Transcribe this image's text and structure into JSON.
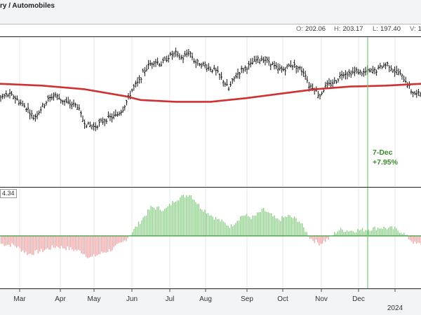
{
  "header": {
    "title": "ry / Automobiles",
    "ohlc": [
      {
        "key": "O:",
        "value": "202.06"
      },
      {
        "key": "H:",
        "value": "203.17"
      },
      {
        "key": "L:",
        "value": "197.40"
      },
      {
        "key": "V:",
        "value": "1"
      }
    ]
  },
  "indicator_label": "4.34",
  "annotation": {
    "date": "7-Dec",
    "change": "+7.95%"
  },
  "colors": {
    "price_bars": "#111111",
    "moving_average": "#d03030",
    "positive_hist": "#8ed08a",
    "negative_hist": "#f2a5a5",
    "zero_line": "#3a9a3a",
    "marker_line": "#7ac77a",
    "grid": "#e4e6e8"
  },
  "chart_data": {
    "type": "ohlc",
    "x_axis": {
      "labels": [
        "Mar",
        "Apr",
        "May",
        "Jun",
        "Jul",
        "Aug",
        "Sep",
        "Oct",
        "Nov",
        "Dec",
        "2024"
      ]
    },
    "price_series": [
      {
        "x": 0,
        "y": 184
      },
      {
        "x": 10,
        "y": 186
      },
      {
        "x": 20,
        "y": 185
      },
      {
        "x": 30,
        "y": 181
      },
      {
        "x": 40,
        "y": 178
      },
      {
        "x": 48,
        "y": 173
      },
      {
        "x": 58,
        "y": 178
      },
      {
        "x": 68,
        "y": 183
      },
      {
        "x": 78,
        "y": 186
      },
      {
        "x": 88,
        "y": 183
      },
      {
        "x": 98,
        "y": 181
      },
      {
        "x": 110,
        "y": 180
      },
      {
        "x": 118,
        "y": 172
      },
      {
        "x": 125,
        "y": 169
      },
      {
        "x": 135,
        "y": 168
      },
      {
        "x": 145,
        "y": 171
      },
      {
        "x": 155,
        "y": 173
      },
      {
        "x": 165,
        "y": 174
      },
      {
        "x": 175,
        "y": 178
      },
      {
        "x": 183,
        "y": 184
      },
      {
        "x": 190,
        "y": 190
      },
      {
        "x": 198,
        "y": 193
      },
      {
        "x": 205,
        "y": 199
      },
      {
        "x": 212,
        "y": 202
      },
      {
        "x": 220,
        "y": 205
      },
      {
        "x": 230,
        "y": 203
      },
      {
        "x": 240,
        "y": 207
      },
      {
        "x": 250,
        "y": 209
      },
      {
        "x": 260,
        "y": 206
      },
      {
        "x": 270,
        "y": 210
      },
      {
        "x": 278,
        "y": 204
      },
      {
        "x": 288,
        "y": 203
      },
      {
        "x": 298,
        "y": 201
      },
      {
        "x": 308,
        "y": 199
      },
      {
        "x": 318,
        "y": 194
      },
      {
        "x": 326,
        "y": 189
      },
      {
        "x": 335,
        "y": 196
      },
      {
        "x": 345,
        "y": 200
      },
      {
        "x": 355,
        "y": 202
      },
      {
        "x": 365,
        "y": 205
      },
      {
        "x": 375,
        "y": 206
      },
      {
        "x": 385,
        "y": 204
      },
      {
        "x": 395,
        "y": 200
      },
      {
        "x": 405,
        "y": 200
      },
      {
        "x": 415,
        "y": 203
      },
      {
        "x": 425,
        "y": 201
      },
      {
        "x": 435,
        "y": 198
      },
      {
        "x": 440,
        "y": 191
      },
      {
        "x": 448,
        "y": 190
      },
      {
        "x": 455,
        "y": 185
      },
      {
        "x": 463,
        "y": 190
      },
      {
        "x": 472,
        "y": 192
      },
      {
        "x": 480,
        "y": 194
      },
      {
        "x": 488,
        "y": 198
      },
      {
        "x": 498,
        "y": 198
      },
      {
        "x": 508,
        "y": 199
      },
      {
        "x": 518,
        "y": 198
      },
      {
        "x": 525,
        "y": 199
      },
      {
        "x": 535,
        "y": 199
      },
      {
        "x": 545,
        "y": 202
      },
      {
        "x": 553,
        "y": 203
      },
      {
        "x": 560,
        "y": 200
      },
      {
        "x": 568,
        "y": 198
      },
      {
        "x": 578,
        "y": 194
      },
      {
        "x": 586,
        "y": 188
      },
      {
        "x": 594,
        "y": 186
      },
      {
        "x": 600,
        "y": 187
      }
    ],
    "moving_average": [
      {
        "x": 0,
        "y": 192
      },
      {
        "x": 60,
        "y": 191
      },
      {
        "x": 120,
        "y": 189
      },
      {
        "x": 180,
        "y": 185
      },
      {
        "x": 200,
        "y": 183
      },
      {
        "x": 250,
        "y": 182
      },
      {
        "x": 300,
        "y": 182
      },
      {
        "x": 350,
        "y": 184
      },
      {
        "x": 400,
        "y": 186.5
      },
      {
        "x": 450,
        "y": 189
      },
      {
        "x": 500,
        "y": 190.5
      },
      {
        "x": 550,
        "y": 191
      },
      {
        "x": 600,
        "y": 192
      }
    ],
    "histogram": [
      {
        "x": 0,
        "y": -1.5
      },
      {
        "x": 20,
        "y": -1.8
      },
      {
        "x": 40,
        "y": -3.5
      },
      {
        "x": 60,
        "y": -2.8
      },
      {
        "x": 80,
        "y": -2.0
      },
      {
        "x": 100,
        "y": -2.5
      },
      {
        "x": 115,
        "y": -3.0
      },
      {
        "x": 128,
        "y": -4.2
      },
      {
        "x": 140,
        "y": -3.5
      },
      {
        "x": 160,
        "y": -2.5
      },
      {
        "x": 175,
        "y": -1.2
      },
      {
        "x": 185,
        "y": 0.3
      },
      {
        "x": 195,
        "y": 2.0
      },
      {
        "x": 215,
        "y": 5.5
      },
      {
        "x": 235,
        "y": 5.0
      },
      {
        "x": 250,
        "y": 7.0
      },
      {
        "x": 270,
        "y": 8.0
      },
      {
        "x": 285,
        "y": 5.5
      },
      {
        "x": 305,
        "y": 3.5
      },
      {
        "x": 328,
        "y": 1.8
      },
      {
        "x": 345,
        "y": 4.0
      },
      {
        "x": 360,
        "y": 3.5
      },
      {
        "x": 375,
        "y": 5.0
      },
      {
        "x": 395,
        "y": 3.0
      },
      {
        "x": 410,
        "y": 3.8
      },
      {
        "x": 425,
        "y": 3.0
      },
      {
        "x": 437,
        "y": 0.5
      },
      {
        "x": 442,
        "y": -0.5
      },
      {
        "x": 455,
        "y": -1.5
      },
      {
        "x": 468,
        "y": -0.5
      },
      {
        "x": 482,
        "y": 1.2
      },
      {
        "x": 500,
        "y": 1.0
      },
      {
        "x": 520,
        "y": 1.2
      },
      {
        "x": 540,
        "y": 1.6
      },
      {
        "x": 560,
        "y": 1.4
      },
      {
        "x": 572,
        "y": 0.8
      },
      {
        "x": 582,
        "y": -0.5
      },
      {
        "x": 592,
        "y": -1.6
      },
      {
        "x": 600,
        "y": -1.5
      }
    ],
    "marker": {
      "label": "7-Dec"
    }
  }
}
